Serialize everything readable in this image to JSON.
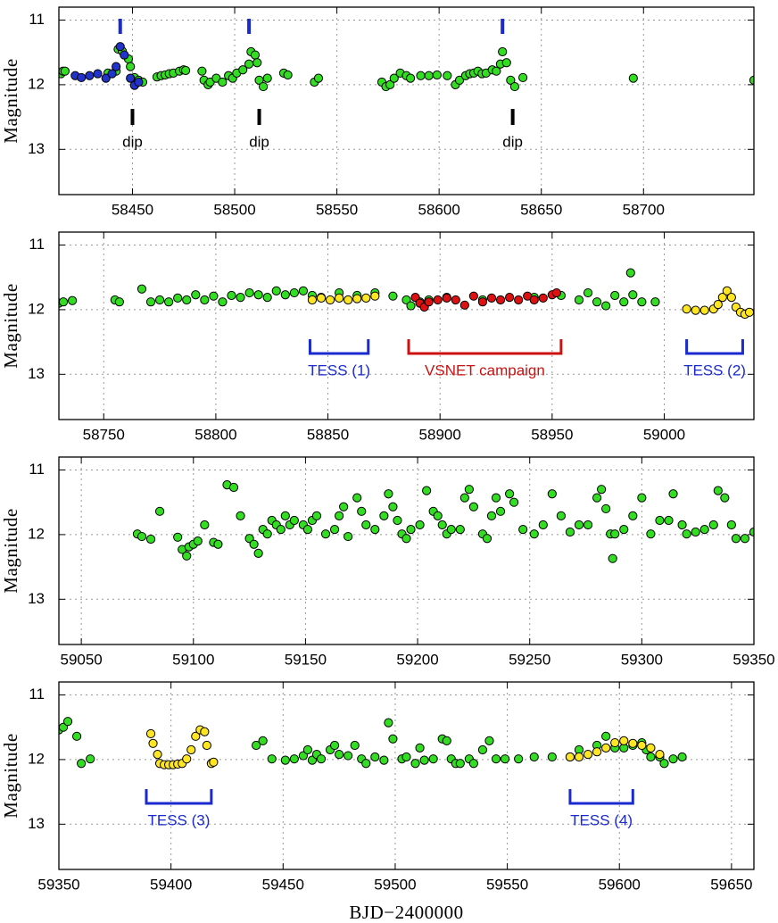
{
  "chart_data": [
    {
      "type": "scatter",
      "ylabel": "Magnitude",
      "xlim": [
        58414,
        58754
      ],
      "xticks": [
        58450,
        58500,
        58550,
        58600,
        58650,
        58700
      ],
      "ylim": [
        10.8,
        13.7
      ],
      "yticks": [
        11,
        12,
        13
      ],
      "y_inverted": true,
      "grid": true,
      "series": [
        {
          "color": "#33dd22",
          "x": [
            58415,
            58416,
            58417,
            58438,
            58442,
            58443,
            58445,
            58448,
            58449,
            58451,
            58453,
            58455,
            58462,
            58464,
            58466,
            58468,
            58470,
            58473,
            58475,
            58476,
            58484,
            58485,
            58487,
            58488,
            58491,
            58494,
            58497,
            58499,
            58501,
            58504,
            58507,
            58508,
            58510,
            58511,
            58512,
            58514,
            58516,
            58524,
            58526,
            58539,
            58541,
            58572,
            58574,
            58576,
            58578,
            58581,
            58584,
            58586,
            58591,
            58595,
            58599,
            58604,
            58608,
            58610,
            58613,
            58615,
            58617,
            58619,
            58621,
            58623,
            58626,
            58628,
            58630,
            58631,
            58633,
            58635,
            58637,
            58641,
            58695,
            58754
          ],
          "values": [
            11.83,
            11.79,
            11.79,
            11.82,
            11.79,
            11.45,
            11.48,
            11.6,
            11.72,
            11.89,
            11.93,
            11.96,
            11.88,
            11.86,
            11.85,
            11.83,
            11.82,
            11.79,
            11.77,
            11.78,
            11.79,
            11.93,
            12.0,
            11.96,
            11.9,
            11.96,
            11.86,
            11.9,
            11.82,
            11.77,
            11.68,
            11.49,
            11.54,
            11.66,
            11.93,
            12.03,
            11.9,
            11.82,
            11.85,
            11.96,
            11.9,
            11.96,
            12.03,
            12.0,
            11.9,
            11.82,
            11.86,
            11.9,
            11.86,
            11.86,
            11.85,
            11.86,
            12.0,
            11.93,
            11.86,
            11.83,
            11.82,
            11.79,
            11.83,
            11.82,
            11.77,
            11.79,
            11.68,
            11.49,
            11.66,
            11.93,
            12.03,
            11.89,
            11.9,
            11.93
          ]
        },
        {
          "color": "#2233cc",
          "x": [
            58422,
            58425,
            58429,
            58433,
            58437,
            58440,
            58442,
            58444,
            58446,
            58449,
            58451,
            58453
          ],
          "values": [
            11.86,
            11.89,
            11.86,
            11.83,
            11.9,
            11.83,
            11.72,
            11.41,
            11.54,
            11.9,
            12.01,
            11.96
          ]
        }
      ],
      "peaks": {
        "color": "#1a2ad0",
        "x": [
          58444,
          58507,
          58631
        ]
      },
      "dips": {
        "color": "#000000",
        "x": [
          58450,
          58512,
          58636
        ],
        "labels": [
          "dip",
          "dip",
          "dip"
        ]
      }
    },
    {
      "type": "scatter",
      "ylabel": "Magnitude",
      "xlim": [
        58730,
        59040
      ],
      "xticks": [
        58750,
        58800,
        58850,
        58900,
        58950,
        59000
      ],
      "ylim": [
        10.8,
        13.7
      ],
      "yticks": [
        11,
        12,
        13
      ],
      "y_inverted": true,
      "grid": true,
      "series": [
        {
          "color": "#33dd22",
          "x": [
            58730,
            58732,
            58736,
            58755,
            58757,
            58767,
            58771,
            58775,
            58779,
            58783,
            58787,
            58791,
            58795,
            58799,
            58803,
            58807,
            58811,
            58815,
            58819,
            58823,
            58827,
            58831,
            58835,
            58839,
            58843,
            58847,
            58855,
            58863,
            58871,
            58879,
            58885,
            58887,
            58891,
            58895,
            58903,
            58919,
            58942,
            58954,
            58962,
            58966,
            58970,
            58974,
            58978,
            58982,
            58985,
            58986,
            58990,
            58996
          ],
          "values": [
            11.9,
            11.88,
            11.86,
            11.85,
            11.88,
            11.68,
            11.88,
            11.85,
            11.88,
            11.82,
            11.85,
            11.77,
            11.85,
            11.79,
            11.88,
            11.78,
            11.81,
            11.74,
            11.77,
            11.81,
            11.71,
            11.77,
            11.74,
            11.71,
            11.78,
            11.81,
            11.74,
            11.78,
            11.74,
            11.79,
            11.85,
            11.94,
            11.88,
            11.85,
            11.81,
            11.85,
            11.81,
            11.78,
            11.85,
            11.74,
            11.88,
            11.94,
            11.78,
            11.88,
            11.43,
            11.77,
            11.88,
            11.88
          ]
        },
        {
          "color": "#ffe622",
          "x": [
            58843,
            58847,
            58851,
            58855,
            58859,
            58863,
            58867,
            58871,
            59010,
            59014,
            59018,
            59022,
            59024,
            59026,
            59028,
            59030,
            59032,
            59034,
            59036,
            59038
          ],
          "values": [
            11.85,
            11.82,
            11.85,
            11.82,
            11.85,
            11.83,
            11.82,
            11.79,
            11.99,
            12.01,
            12.01,
            11.99,
            11.92,
            11.81,
            11.71,
            11.81,
            11.96,
            12.04,
            12.07,
            12.04
          ]
        },
        {
          "color": "#dd1111",
          "x": [
            58889,
            58891,
            58893,
            58895,
            58899,
            58903,
            58907,
            58911,
            58915,
            58919,
            58923,
            58927,
            58931,
            58935,
            58939,
            58942,
            58946,
            58950,
            58952
          ],
          "values": [
            11.81,
            11.9,
            11.96,
            11.88,
            11.85,
            11.82,
            11.85,
            11.93,
            11.79,
            11.88,
            11.82,
            11.85,
            11.81,
            11.85,
            11.79,
            11.85,
            11.82,
            11.77,
            11.74
          ]
        }
      ],
      "brackets": [
        {
          "label": "TESS (1)",
          "start": 58842,
          "end": 58868,
          "color": "#1a2ad0"
        },
        {
          "label": "VSNET campaign",
          "start": 58886,
          "end": 58954,
          "color": "#cc1111"
        },
        {
          "label": "TESS (2)",
          "start": 59010,
          "end": 59035,
          "color": "#1a2ad0"
        }
      ]
    },
    {
      "type": "scatter",
      "ylabel": "Magnitude",
      "xlim": [
        59040,
        59350
      ],
      "xticks": [
        59050,
        59100,
        59150,
        59200,
        59250,
        59300,
        59350
      ],
      "ylim": [
        10.8,
        13.7
      ],
      "yticks": [
        11,
        12,
        13
      ],
      "y_inverted": true,
      "grid": true,
      "series": [
        {
          "color": "#33dd22",
          "x": [
            59075,
            59077,
            59081,
            59085,
            59093,
            59095,
            59097,
            59098,
            59100,
            59102,
            59105,
            59109,
            59111,
            59115,
            59118,
            59121,
            59125,
            59127,
            59129,
            59131,
            59133,
            59135,
            59137,
            59139,
            59141,
            59143,
            59145,
            59149,
            59151,
            59153,
            59155,
            59159,
            59163,
            59165,
            59167,
            59169,
            59173,
            59175,
            59177,
            59181,
            59185,
            59187,
            59189,
            59191,
            59193,
            59195,
            59197,
            59201,
            59204,
            59207,
            59209,
            59211,
            59213,
            59215,
            59219,
            59221,
            59223,
            59225,
            59229,
            59231,
            59233,
            59235,
            59237,
            59241,
            59243,
            59247,
            59252,
            59256,
            59260,
            59264,
            59268,
            59272,
            59276,
            59280,
            59282,
            59284,
            59286,
            59287,
            59288,
            59292,
            59296,
            59300,
            59304,
            59308,
            59312,
            59314,
            59318,
            59320,
            59324,
            59328,
            59332,
            59334,
            59337,
            59340,
            59342,
            59346,
            59350
          ],
          "values": [
            11.99,
            12.03,
            12.07,
            11.64,
            12.04,
            12.23,
            12.33,
            12.19,
            12.15,
            12.1,
            11.85,
            12.12,
            12.15,
            11.23,
            11.27,
            11.71,
            12.06,
            12.15,
            12.29,
            11.92,
            11.99,
            11.78,
            11.85,
            11.92,
            11.71,
            11.85,
            11.78,
            11.85,
            11.92,
            11.78,
            11.71,
            11.99,
            11.92,
            11.71,
            11.57,
            12.03,
            11.43,
            11.64,
            11.85,
            11.92,
            11.71,
            11.37,
            11.57,
            11.78,
            11.99,
            12.06,
            11.92,
            11.85,
            11.32,
            11.64,
            11.71,
            11.85,
            11.99,
            11.92,
            11.92,
            11.43,
            11.3,
            11.57,
            11.99,
            12.06,
            11.71,
            11.43,
            11.64,
            11.37,
            11.5,
            11.92,
            11.99,
            11.85,
            11.37,
            11.71,
            11.96,
            11.85,
            11.85,
            11.43,
            11.3,
            11.6,
            11.99,
            12.37,
            11.99,
            11.92,
            11.71,
            11.43,
            11.99,
            11.78,
            11.78,
            11.37,
            11.85,
            11.99,
            11.96,
            11.92,
            11.85,
            11.32,
            11.43,
            11.85,
            12.06,
            12.06,
            11.96
          ]
        }
      ]
    },
    {
      "type": "scatter",
      "ylabel": "Magnitude",
      "xlabel": "BJD−2400000",
      "xlim": [
        59350,
        59660
      ],
      "xticks": [
        59350,
        59400,
        59450,
        59500,
        59550,
        59600,
        59650
      ],
      "ylim": [
        10.8,
        13.7
      ],
      "yticks": [
        11,
        12,
        13
      ],
      "y_inverted": true,
      "grid": true,
      "series": [
        {
          "color": "#33dd22",
          "x": [
            59350,
            59352,
            59354,
            59358,
            59360,
            59364,
            59438,
            59441,
            59445,
            59451,
            59455,
            59459,
            59461,
            59463,
            59465,
            59467,
            59471,
            59473,
            59475,
            59479,
            59482,
            59485,
            59487,
            59491,
            59495,
            59497,
            59499,
            59503,
            59505,
            59509,
            59511,
            59513,
            59517,
            59521,
            59523,
            59525,
            59527,
            59529,
            59533,
            59535,
            59539,
            59542,
            59545,
            59549,
            59555,
            59562,
            59570,
            59578,
            59582,
            59590,
            59594,
            59598,
            59602,
            59606,
            59610,
            59612,
            59614,
            59618,
            59620,
            59624,
            59628
          ],
          "values": [
            11.54,
            11.5,
            11.41,
            11.64,
            12.06,
            11.99,
            11.78,
            11.71,
            11.99,
            12.01,
            11.99,
            11.94,
            11.85,
            12.01,
            11.92,
            11.99,
            11.85,
            11.78,
            11.92,
            11.94,
            11.78,
            11.99,
            12.06,
            11.96,
            12.01,
            11.43,
            11.68,
            11.99,
            11.96,
            12.06,
            11.82,
            12.01,
            11.99,
            11.68,
            11.71,
            11.99,
            12.06,
            12.06,
            11.99,
            12.06,
            11.85,
            11.71,
            11.99,
            11.99,
            11.99,
            11.96,
            11.96,
            11.96,
            11.85,
            11.78,
            11.64,
            11.82,
            11.82,
            11.78,
            11.74,
            11.85,
            11.96,
            11.96,
            12.06,
            11.99,
            11.96
          ]
        },
        {
          "color": "#ffe622",
          "x": [
            59391,
            59392,
            59394,
            59395,
            59397,
            59399,
            59401,
            59403,
            59405,
            59407,
            59409,
            59411,
            59413,
            59415,
            59416,
            59418,
            59419,
            59578,
            59582,
            59586,
            59590,
            59594,
            59598,
            59602,
            59606,
            59610,
            59614,
            59618
          ],
          "values": [
            11.6,
            11.75,
            11.92,
            12.06,
            12.08,
            12.08,
            12.08,
            12.07,
            12.06,
            11.99,
            11.85,
            11.64,
            11.54,
            11.57,
            11.78,
            12.06,
            12.04,
            11.96,
            11.96,
            11.92,
            11.88,
            11.82,
            11.74,
            11.71,
            11.75,
            11.78,
            11.82,
            11.92
          ]
        }
      ],
      "brackets": [
        {
          "label": "TESS (3)",
          "start": 59389,
          "end": 59418,
          "color": "#1a2ad0"
        },
        {
          "label": "TESS (4)",
          "start": 59578,
          "end": 59606,
          "color": "#1a2ad0"
        }
      ]
    }
  ]
}
